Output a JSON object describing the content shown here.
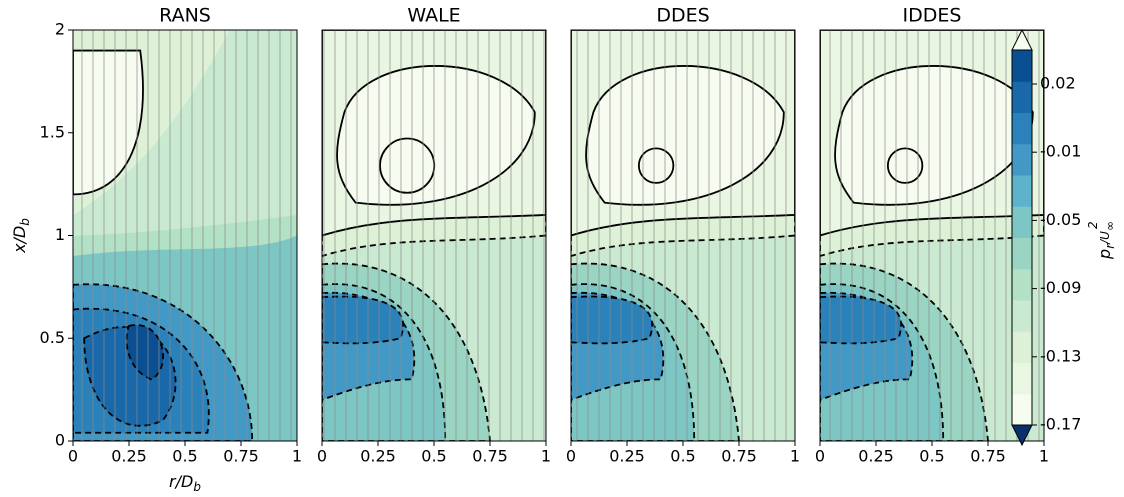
{
  "chart_data": [
    {
      "type": "contour",
      "title": "RANS",
      "xlim": [
        0,
        1
      ],
      "ylim": [
        0,
        2
      ],
      "xticks": [
        0,
        0.25,
        0.5,
        0.75,
        1
      ],
      "yticks": [
        0,
        0.5,
        1,
        1.5,
        2
      ],
      "xlabel": {
        "text": "r/D",
        "subscript": "b"
      },
      "ylabel": {
        "text": "x/D",
        "subscript": "b"
      }
    },
    {
      "type": "contour",
      "title": "WALE",
      "xlim": [
        0,
        1
      ],
      "ylim": [
        0,
        2
      ],
      "xticks": [
        0,
        0.25,
        0.5,
        0.75,
        1
      ]
    },
    {
      "type": "contour",
      "title": "DDES",
      "xlim": [
        0,
        1
      ],
      "ylim": [
        0,
        2
      ],
      "xticks": [
        0,
        0.25,
        0.5,
        0.75,
        1
      ]
    },
    {
      "type": "contour",
      "title": "IDDES",
      "xlim": [
        0,
        1
      ],
      "ylim": [
        0,
        2
      ],
      "xticks": [
        0,
        0.25,
        0.5,
        0.75,
        1
      ]
    },
    {
      "type": "colorbar",
      "ticks": [
        0.02,
        -0.01,
        -0.05,
        -0.09,
        -0.13,
        -0.17
      ],
      "label": {
        "text": "p",
        "subscript": "r",
        "middle": "/U",
        "superscript": "2",
        "subscript2": "∞"
      },
      "colors": [
        "#f7fcf0",
        "#e8f6e2",
        "#dcf1d5",
        "#c9ead0",
        "#b3e1c5",
        "#99d5c2",
        "#7cc6c4",
        "#5eb3cc",
        "#4299c6",
        "#2b81b9",
        "#1968a9",
        "#0b4f93"
      ]
    }
  ]
}
